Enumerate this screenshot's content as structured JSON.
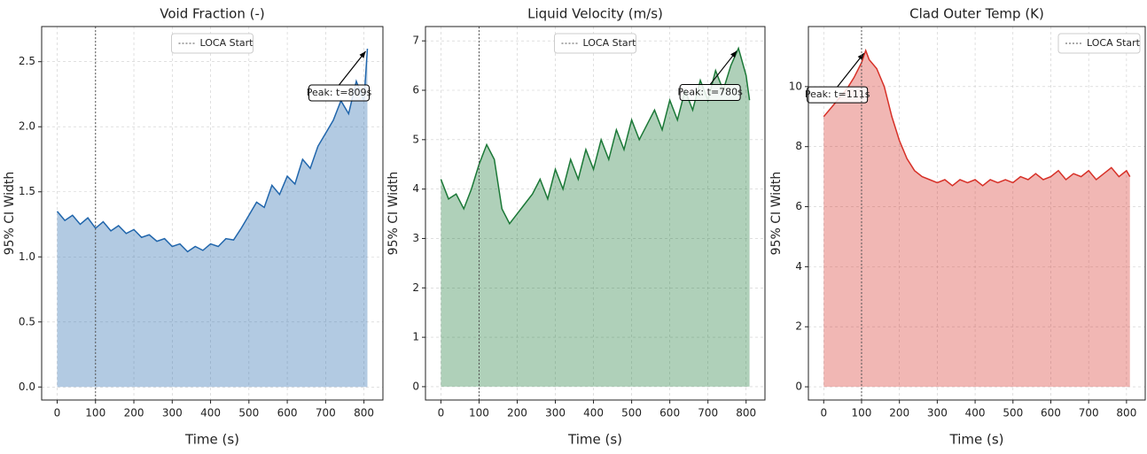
{
  "chart_data": [
    {
      "type": "line",
      "title": "Void Fraction (-)",
      "xlabel": "Time (s)",
      "ylabel": "95% CI Width",
      "x": [
        0,
        20,
        40,
        60,
        80,
        100,
        120,
        140,
        160,
        180,
        200,
        220,
        240,
        260,
        280,
        300,
        320,
        340,
        360,
        380,
        400,
        420,
        440,
        460,
        480,
        500,
        520,
        540,
        560,
        580,
        600,
        620,
        640,
        660,
        680,
        700,
        720,
        740,
        760,
        780,
        800,
        809
      ],
      "series": [
        {
          "color": "#2166ac",
          "values": [
            1.35,
            1.28,
            1.32,
            1.25,
            1.3,
            1.22,
            1.27,
            1.2,
            1.24,
            1.18,
            1.21,
            1.15,
            1.17,
            1.12,
            1.14,
            1.08,
            1.1,
            1.04,
            1.08,
            1.05,
            1.1,
            1.08,
            1.14,
            1.13,
            1.22,
            1.32,
            1.42,
            1.38,
            1.55,
            1.48,
            1.62,
            1.56,
            1.75,
            1.68,
            1.85,
            1.95,
            2.05,
            2.2,
            2.1,
            2.35,
            2.2,
            2.6
          ]
        }
      ],
      "fill": true,
      "vline": {
        "x": 100,
        "label": "LOCA Start"
      },
      "legend": "upper center",
      "annotation": "Peak: t=809s",
      "xlim": [
        -40.45,
        849.45
      ],
      "ylim": [
        -0.1,
        2.77
      ],
      "xticks": [
        0,
        100,
        200,
        300,
        400,
        500,
        600,
        700,
        800
      ],
      "yticks": [
        {
          "value": 0,
          "label": "0.0"
        },
        0.5,
        {
          "value": 1,
          "label": "1.0"
        },
        1.5,
        {
          "value": 2,
          "label": "2.0"
        },
        2.5
      ],
      "grid": true
    },
    {
      "type": "line",
      "title": "Liquid Velocity (m/s)",
      "xlabel": "Time (s)",
      "ylabel": "95% CI Width",
      "x": [
        0,
        20,
        40,
        60,
        80,
        100,
        120,
        140,
        160,
        180,
        200,
        220,
        240,
        260,
        280,
        300,
        320,
        340,
        360,
        380,
        400,
        420,
        440,
        460,
        480,
        500,
        520,
        540,
        560,
        580,
        600,
        620,
        640,
        660,
        680,
        700,
        720,
        740,
        760,
        780,
        800,
        809
      ],
      "series": [
        {
          "color": "#1b7837",
          "values": [
            4.2,
            3.8,
            3.9,
            3.6,
            4.0,
            4.5,
            4.9,
            4.6,
            3.6,
            3.3,
            3.5,
            3.7,
            3.9,
            4.2,
            3.8,
            4.4,
            4.0,
            4.6,
            4.2,
            4.8,
            4.4,
            5.0,
            4.6,
            5.2,
            4.8,
            5.4,
            5.0,
            5.3,
            5.6,
            5.2,
            5.8,
            5.4,
            6.0,
            5.6,
            6.2,
            5.8,
            6.4,
            6.0,
            6.5,
            6.85,
            6.3,
            5.8
          ]
        }
      ],
      "fill": true,
      "vline": {
        "x": 100,
        "label": "LOCA Start"
      },
      "legend": "upper center",
      "annotation": "Peak: t=780s",
      "xlim": [
        -40.45,
        849.45
      ],
      "ylim": [
        -0.27,
        7.29
      ],
      "xticks": [
        0,
        100,
        200,
        300,
        400,
        500,
        600,
        700,
        800
      ],
      "yticks": [
        0,
        1,
        2,
        3,
        4,
        5,
        6,
        7
      ],
      "grid": true
    },
    {
      "type": "line",
      "title": "Clad Outer Temp (K)",
      "xlabel": "Time (s)",
      "ylabel": "95% CI Width",
      "x": [
        0,
        20,
        40,
        60,
        80,
        100,
        111,
        120,
        140,
        160,
        180,
        200,
        220,
        240,
        260,
        280,
        300,
        320,
        340,
        360,
        380,
        400,
        420,
        440,
        460,
        480,
        500,
        520,
        540,
        560,
        580,
        600,
        620,
        640,
        660,
        680,
        700,
        720,
        740,
        760,
        780,
        800,
        809
      ],
      "series": [
        {
          "color": "#d73027",
          "values": [
            9.0,
            9.3,
            9.6,
            9.9,
            10.3,
            10.8,
            11.2,
            10.9,
            10.6,
            10.0,
            9.0,
            8.2,
            7.6,
            7.2,
            7.0,
            6.9,
            6.8,
            6.9,
            6.7,
            6.9,
            6.8,
            6.9,
            6.7,
            6.9,
            6.8,
            6.9,
            6.8,
            7.0,
            6.9,
            7.1,
            6.9,
            7.0,
            7.2,
            6.9,
            7.1,
            7.0,
            7.2,
            6.9,
            7.1,
            7.3,
            7.0,
            7.2,
            7.0
          ]
        }
      ],
      "fill": true,
      "vline": {
        "x": 100,
        "label": "LOCA Start"
      },
      "legend": "upper right",
      "annotation": "Peak: t=111s",
      "xlim": [
        -40.45,
        849.45
      ],
      "ylim": [
        -0.44,
        12.0
      ],
      "xticks": [
        0,
        100,
        200,
        300,
        400,
        500,
        600,
        700,
        800
      ],
      "yticks": [
        0,
        2,
        4,
        6,
        8,
        10
      ],
      "grid": true
    }
  ]
}
